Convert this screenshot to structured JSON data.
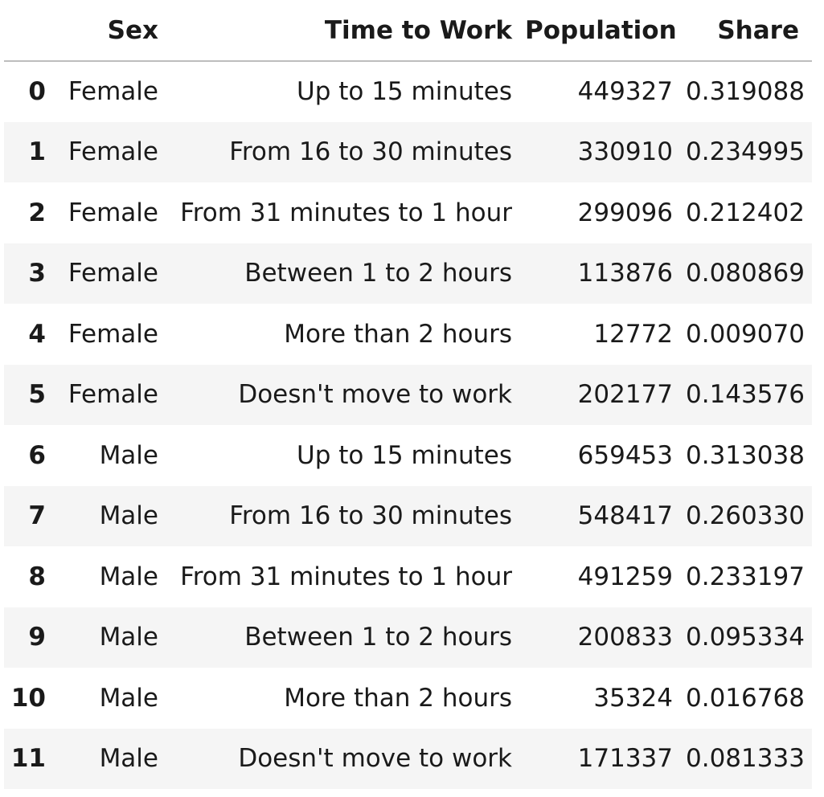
{
  "table": {
    "columns": [
      "",
      "Sex",
      "Time to Work",
      "Population",
      "Share"
    ],
    "rows": [
      {
        "index": "0",
        "sex": "Female",
        "time": "Up to 15 minutes",
        "population": "449327",
        "share": "0.319088"
      },
      {
        "index": "1",
        "sex": "Female",
        "time": "From 16 to 30 minutes",
        "population": "330910",
        "share": "0.234995"
      },
      {
        "index": "2",
        "sex": "Female",
        "time": "From 31 minutes to 1 hour",
        "population": "299096",
        "share": "0.212402"
      },
      {
        "index": "3",
        "sex": "Female",
        "time": "Between 1 to 2 hours",
        "population": "113876",
        "share": "0.080869"
      },
      {
        "index": "4",
        "sex": "Female",
        "time": "More than 2 hours",
        "population": "12772",
        "share": "0.009070"
      },
      {
        "index": "5",
        "sex": "Female",
        "time": "Doesn't move to work",
        "population": "202177",
        "share": "0.143576"
      },
      {
        "index": "6",
        "sex": "Male",
        "time": "Up to 15 minutes",
        "population": "659453",
        "share": "0.313038"
      },
      {
        "index": "7",
        "sex": "Male",
        "time": "From 16 to 30 minutes",
        "population": "548417",
        "share": "0.260330"
      },
      {
        "index": "8",
        "sex": "Male",
        "time": "From 31 minutes to 1 hour",
        "population": "491259",
        "share": "0.233197"
      },
      {
        "index": "9",
        "sex": "Male",
        "time": "Between 1 to 2 hours",
        "population": "200833",
        "share": "0.095334"
      },
      {
        "index": "10",
        "sex": "Male",
        "time": "More than 2 hours",
        "population": "35324",
        "share": "0.016768"
      },
      {
        "index": "11",
        "sex": "Male",
        "time": "Doesn't move to work",
        "population": "171337",
        "share": "0.081333"
      }
    ]
  }
}
